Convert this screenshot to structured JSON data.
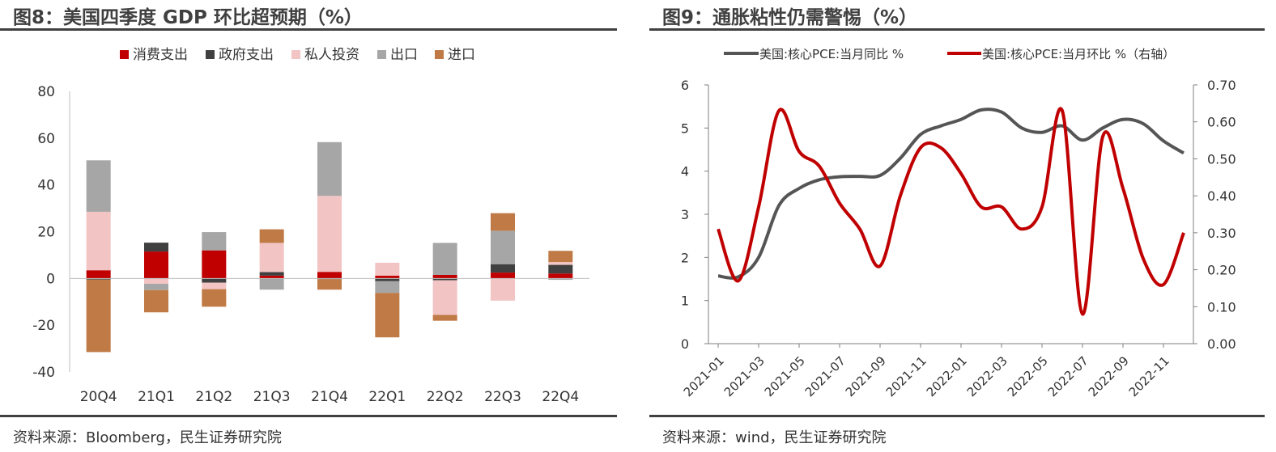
{
  "left": {
    "title": "图8：美国四季度 GDP 环比超预期（%）",
    "source": "资料来源：Bloomberg，民生证券研究院",
    "chart_data": {
      "type": "bar",
      "stacked": true,
      "categories": [
        "20Q4",
        "21Q1",
        "21Q2",
        "21Q3",
        "21Q4",
        "22Q1",
        "22Q2",
        "22Q3",
        "22Q4"
      ],
      "ylim": [
        -40,
        80
      ],
      "yticks": [
        -40,
        -20,
        0,
        20,
        40,
        60,
        80
      ],
      "legend_position": "top",
      "grid": false,
      "series": [
        {
          "name": "消费支出",
          "color": "#c00000",
          "values": [
            3.5,
            11.5,
            12,
            1.2,
            2.8,
            1.2,
            1.5,
            2.5,
            2.1
          ]
        },
        {
          "name": "政府支出",
          "color": "#404040",
          "values": [
            -0.5,
            3.8,
            -1.8,
            1.5,
            -0.3,
            -1.2,
            -0.8,
            3.6,
            3.7
          ]
        },
        {
          "name": "私人投资",
          "color": "#f2c4c4",
          "values": [
            25,
            -2.3,
            -2.8,
            12.5,
            32.5,
            5.5,
            -14.8,
            -9.5,
            1.2
          ]
        },
        {
          "name": "出口",
          "color": "#a6a6a6",
          "values": [
            22,
            -2.7,
            7.8,
            -4.8,
            23,
            -5,
            13.7,
            14.3,
            -0.6
          ]
        },
        {
          "name": "进口",
          "color": "#c07a45",
          "values": [
            -31,
            -9.5,
            -7.5,
            5.8,
            -4.5,
            -19,
            -2.5,
            7.5,
            4.8
          ]
        }
      ]
    }
  },
  "right": {
    "title": "图9：通胀粘性仍需警惕（%）",
    "source": "资料来源：wind，民生证券研究院",
    "chart_data": {
      "type": "line",
      "x": [
        "2021-01",
        "2021-02",
        "2021-03",
        "2021-04",
        "2021-05",
        "2021-06",
        "2021-07",
        "2021-08",
        "2021-09",
        "2021-10",
        "2021-11",
        "2021-12",
        "2022-01",
        "2022-02",
        "2022-03",
        "2022-04",
        "2022-05",
        "2022-06",
        "2022-07",
        "2022-08",
        "2022-09",
        "2022-10",
        "2022-11",
        "2022-12"
      ],
      "xtick_labels": [
        "2021-01",
        "2021-03",
        "2021-05",
        "2021-07",
        "2021-09",
        "2021-11",
        "2022-01",
        "2022-03",
        "2022-05",
        "2022-07",
        "2022-09",
        "2022-11"
      ],
      "ylim_left": [
        0,
        6
      ],
      "yticks_left": [
        0,
        1,
        2,
        3,
        4,
        5,
        6
      ],
      "ylim_right": [
        0,
        0.7
      ],
      "yticks_right": [
        "0.00",
        "0.10",
        "0.20",
        "0.30",
        "0.40",
        "0.50",
        "0.60",
        "0.70"
      ],
      "legend_position": "top",
      "grid": false,
      "series": [
        {
          "name": "美国:核心PCE:当月同比 %",
          "color": "#555555",
          "axis": "left",
          "values": [
            1.57,
            1.55,
            2.0,
            3.2,
            3.6,
            3.8,
            3.87,
            3.88,
            3.9,
            4.3,
            4.85,
            5.05,
            5.2,
            5.42,
            5.37,
            5.0,
            4.9,
            5.05,
            4.72,
            5.0,
            5.2,
            5.1,
            4.7,
            4.42
          ]
        },
        {
          "name": "美国:核心PCE:当月环比 %（右轴）",
          "color": "#c00000",
          "axis": "right",
          "values": [
            0.31,
            0.17,
            0.37,
            0.63,
            0.52,
            0.48,
            0.38,
            0.31,
            0.21,
            0.4,
            0.53,
            0.53,
            0.46,
            0.37,
            0.37,
            0.31,
            0.37,
            0.63,
            0.08,
            0.56,
            0.42,
            0.23,
            0.16,
            0.3
          ]
        }
      ]
    }
  }
}
